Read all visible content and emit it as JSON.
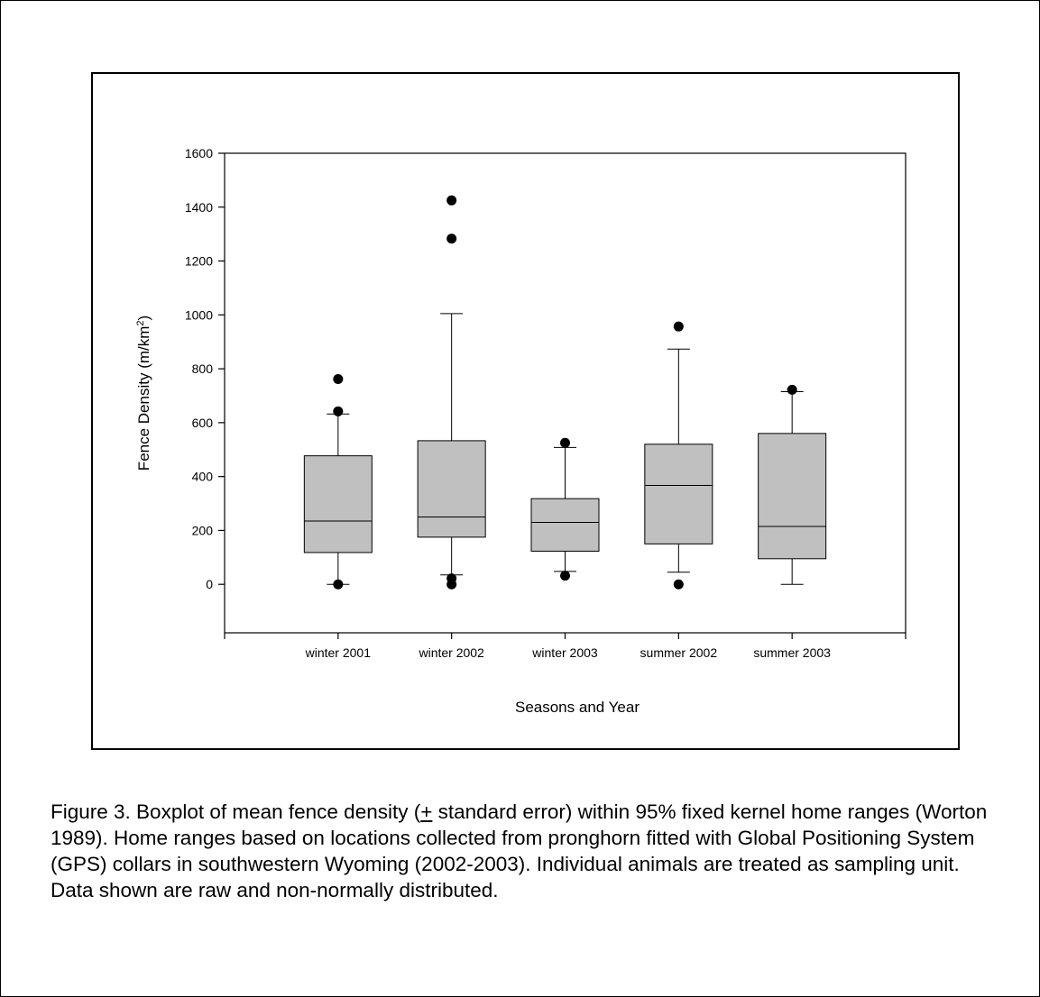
{
  "chart_data": {
    "type": "boxplot",
    "title": "",
    "xlabel": "Seasons and Year",
    "ylabel_main": "Fence Density (m/km",
    "ylabel_sup": "2",
    "ylabel_close": ")",
    "ylim": [
      -180,
      1600
    ],
    "yticks": [
      0,
      200,
      400,
      600,
      800,
      1000,
      1200,
      1400,
      1600
    ],
    "ytick_labels": [
      "0",
      "200",
      "400",
      "600",
      "800",
      "1000",
      "1200",
      "1400",
      "1600"
    ],
    "grid": false,
    "box_color": "#c0c0c0",
    "categories": [
      "winter 2001",
      "winter 2002",
      "winter 2003",
      "summer 2002",
      "summer 2003"
    ],
    "boxes": [
      {
        "label": "winter 2001",
        "q1": 118,
        "median": 235,
        "q3": 477,
        "whisker_low": 0,
        "whisker_high": 632,
        "outliers": [
          762,
          642,
          0
        ]
      },
      {
        "label": "winter 2002",
        "q1": 175,
        "median": 250,
        "q3": 533,
        "whisker_low": 35,
        "whisker_high": 1005,
        "outliers": [
          1425,
          1283,
          22,
          0
        ]
      },
      {
        "label": "winter 2003",
        "q1": 123,
        "median": 230,
        "q3": 318,
        "whisker_low": 48,
        "whisker_high": 508,
        "outliers": [
          525,
          32
        ]
      },
      {
        "label": "summer 2002",
        "q1": 150,
        "median": 367,
        "q3": 520,
        "whisker_low": 45,
        "whisker_high": 873,
        "outliers": [
          957,
          0
        ]
      },
      {
        "label": "summer 2003",
        "q1": 95,
        "median": 215,
        "q3": 560,
        "whisker_low": 0,
        "whisker_high": 715,
        "outliers": [
          722
        ]
      }
    ]
  },
  "caption": {
    "part1": "Figure 3.  Boxplot of mean fence density (",
    "pm": "+",
    "part2": " standard error) within 95% fixed kernel home ranges (Worton 1989).  Home ranges based on locations collected from pronghorn fitted with Global Positioning System (GPS) collars in southwestern Wyoming (2002-2003).  Individual animals are treated as sampling unit.  Data shown are raw and non-normally distributed."
  }
}
